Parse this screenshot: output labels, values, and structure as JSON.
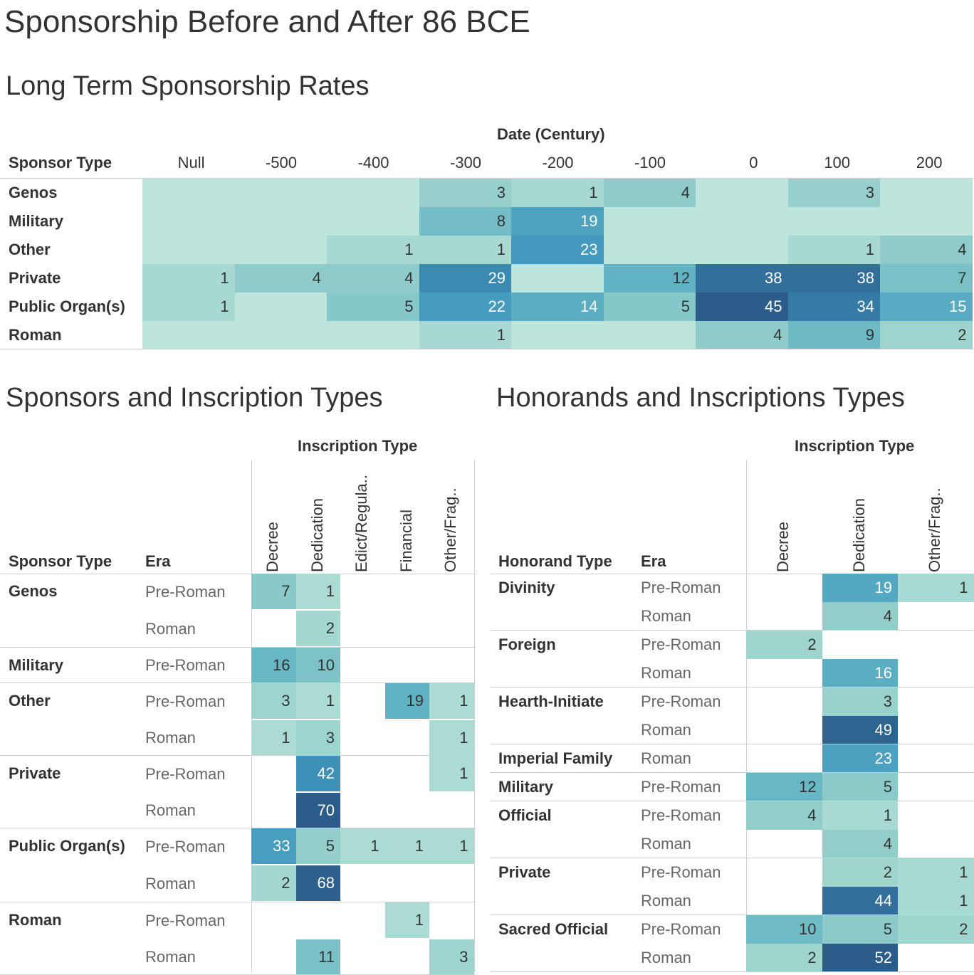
{
  "title": "Sponsorship Before and After 86 BCE",
  "chart_data": [
    {
      "type": "heatmap",
      "title": "Long Term Sponsorship Rates",
      "xlabel": "Date (Century)",
      "ylabel": "Sponsor Type",
      "columns": [
        "Null",
        "-500",
        "-400",
        "-300",
        "-200",
        "-100",
        "0",
        "100",
        "200"
      ],
      "rows": [
        "Genos",
        "Military",
        "Other",
        "Private",
        "Public Organ(s)",
        "Roman"
      ],
      "values": [
        [
          null,
          null,
          null,
          3,
          1,
          4,
          null,
          3,
          null
        ],
        [
          null,
          null,
          null,
          8,
          19,
          null,
          null,
          null,
          null
        ],
        [
          null,
          null,
          1,
          1,
          23,
          null,
          null,
          1,
          4
        ],
        [
          1,
          4,
          4,
          29,
          null,
          12,
          38,
          38,
          7
        ],
        [
          1,
          null,
          5,
          22,
          14,
          5,
          45,
          34,
          15
        ],
        [
          null,
          null,
          null,
          1,
          null,
          null,
          4,
          9,
          2
        ]
      ]
    },
    {
      "type": "heatmap",
      "title": "Sponsors and Inscription Types",
      "xlabel": "Inscription Type",
      "row_header_1": "Sponsor Type",
      "row_header_2": "Era",
      "columns": [
        "Decree",
        "Dedication",
        "Edict/Regula..",
        "Financial",
        "Other/Frag.."
      ],
      "groups": [
        {
          "name": "Genos",
          "rows": [
            {
              "era": "Pre-Roman",
              "values": [
                7,
                1,
                null,
                null,
                null
              ]
            },
            {
              "era": "Roman",
              "values": [
                null,
                2,
                null,
                null,
                null
              ]
            }
          ]
        },
        {
          "name": "Military",
          "rows": [
            {
              "era": "Pre-Roman",
              "values": [
                16,
                10,
                null,
                null,
                null
              ]
            }
          ]
        },
        {
          "name": "Other",
          "rows": [
            {
              "era": "Pre-Roman",
              "values": [
                3,
                1,
                null,
                19,
                1
              ]
            },
            {
              "era": "Roman",
              "values": [
                1,
                3,
                null,
                null,
                1
              ]
            }
          ]
        },
        {
          "name": "Private",
          "rows": [
            {
              "era": "Pre-Roman",
              "values": [
                null,
                42,
                null,
                null,
                1
              ]
            },
            {
              "era": "Roman",
              "values": [
                null,
                70,
                null,
                null,
                null
              ]
            }
          ]
        },
        {
          "name": "Public Organ(s)",
          "rows": [
            {
              "era": "Pre-Roman",
              "values": [
                33,
                5,
                1,
                1,
                1
              ]
            },
            {
              "era": "Roman",
              "values": [
                2,
                68,
                null,
                null,
                null
              ]
            }
          ]
        },
        {
          "name": "Roman",
          "rows": [
            {
              "era": "Pre-Roman",
              "values": [
                null,
                null,
                null,
                1,
                null
              ]
            },
            {
              "era": "Roman",
              "values": [
                null,
                11,
                null,
                null,
                3
              ]
            }
          ]
        }
      ]
    },
    {
      "type": "heatmap",
      "title": "Honorands and Inscriptions Types",
      "xlabel": "Inscription Type",
      "row_header_1": "Honorand Type",
      "row_header_2": "Era",
      "columns": [
        "Decree",
        "Dedication",
        "Other/Frag.."
      ],
      "groups": [
        {
          "name": "Divinity",
          "rows": [
            {
              "era": "Pre-Roman",
              "values": [
                null,
                19,
                1
              ]
            },
            {
              "era": "Roman",
              "values": [
                null,
                4,
                null
              ]
            }
          ]
        },
        {
          "name": "Foreign",
          "rows": [
            {
              "era": "Pre-Roman",
              "values": [
                2,
                null,
                null
              ]
            },
            {
              "era": "Roman",
              "values": [
                null,
                16,
                null
              ]
            }
          ]
        },
        {
          "name": "Hearth-Initiate",
          "rows": [
            {
              "era": "Pre-Roman",
              "values": [
                null,
                3,
                null
              ]
            },
            {
              "era": "Roman",
              "values": [
                null,
                49,
                null
              ]
            }
          ]
        },
        {
          "name": "Imperial Family",
          "rows": [
            {
              "era": "Roman",
              "values": [
                null,
                23,
                null
              ]
            }
          ]
        },
        {
          "name": "Military",
          "rows": [
            {
              "era": "Pre-Roman",
              "values": [
                12,
                5,
                null
              ]
            }
          ]
        },
        {
          "name": "Official",
          "rows": [
            {
              "era": "Pre-Roman",
              "values": [
                4,
                1,
                null
              ]
            },
            {
              "era": "Roman",
              "values": [
                null,
                4,
                null
              ]
            }
          ]
        },
        {
          "name": "Private",
          "rows": [
            {
              "era": "Pre-Roman",
              "values": [
                null,
                2,
                1
              ]
            },
            {
              "era": "Roman",
              "values": [
                null,
                44,
                1
              ]
            }
          ]
        },
        {
          "name": "Sacred Official",
          "rows": [
            {
              "era": "Pre-Roman",
              "values": [
                10,
                5,
                2
              ]
            },
            {
              "era": "Roman",
              "values": [
                2,
                52,
                null
              ]
            }
          ]
        }
      ]
    }
  ]
}
